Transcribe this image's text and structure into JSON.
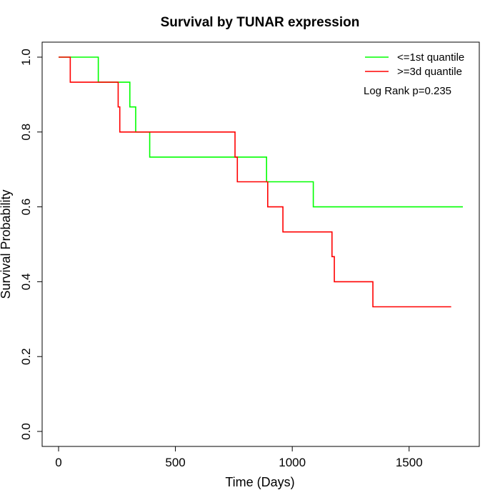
{
  "chart_data": {
    "type": "line",
    "title": "Survival by TUNAR expression",
    "xlabel": "Time (Days)",
    "ylabel": "Survival Probability",
    "xlim": [
      0,
      1730
    ],
    "ylim": [
      0,
      1
    ],
    "x_ticks": [
      0,
      500,
      1000,
      1500
    ],
    "x_tick_labels": [
      "0",
      "500",
      "1000",
      "1500"
    ],
    "y_ticks": [
      0,
      0.2,
      0.4,
      0.6,
      0.8,
      1.0
    ],
    "y_tick_labels": [
      "0.0",
      "0.2",
      "0.4",
      "0.6",
      "0.8",
      "1.0"
    ],
    "grid": false,
    "legend_position": "top-right",
    "annotation": "Log Rank p=0.235",
    "series": [
      {
        "name": "<=1st quantile",
        "color": "#00ff00",
        "step": true,
        "x": [
          0,
          170,
          305,
          330,
          390,
          890,
          1090,
          1730
        ],
        "y": [
          1.0,
          0.933,
          0.867,
          0.8,
          0.733,
          0.667,
          0.6,
          0.6
        ]
      },
      {
        "name": ">=3d quantile",
        "color": "#ff0000",
        "step": true,
        "x": [
          0,
          50,
          255,
          262,
          755,
          765,
          895,
          960,
          1170,
          1180,
          1345,
          1680
        ],
        "y": [
          1.0,
          0.933,
          0.867,
          0.8,
          0.733,
          0.667,
          0.6,
          0.533,
          0.467,
          0.4,
          0.333,
          0.333
        ]
      }
    ]
  }
}
